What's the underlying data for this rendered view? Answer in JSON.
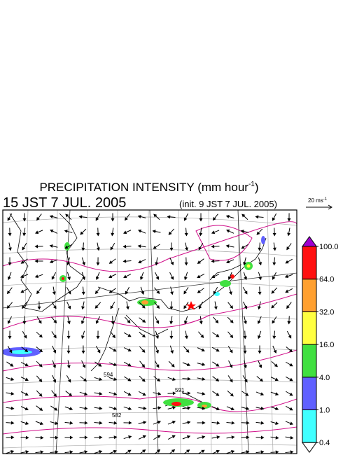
{
  "header": {
    "title": {
      "text": "PRECIPITATION INTENSITY (mm hour",
      "sup": "-1",
      "close": ")"
    },
    "valid_time": "15 JST 7 JUL. 2005",
    "init_time": "(init. 9 JST 7 JUL. 2005)",
    "reference_vector": {
      "text": "20 ms",
      "sup": "-1"
    }
  },
  "contour_labels": [
    "594",
    "591",
    "582"
  ],
  "colorbar": {
    "colors": [
      "#40ffff",
      "#6060ff",
      "#40e040",
      "#ffff40",
      "#ffa030",
      "#ff1010"
    ],
    "over_color": "#a000d0",
    "under_color": "#ffffff",
    "ticks": [
      {
        "value": 0.4,
        "label": "0.4"
      },
      {
        "value": 1,
        "label": "1.0"
      },
      {
        "value": 4,
        "label": "4.0"
      },
      {
        "value": 16,
        "label": "16.0"
      },
      {
        "value": 32,
        "label": "32.0"
      },
      {
        "value": 64,
        "label": "64.0"
      },
      {
        "value": 100,
        "label": "100.0"
      }
    ]
  }
}
